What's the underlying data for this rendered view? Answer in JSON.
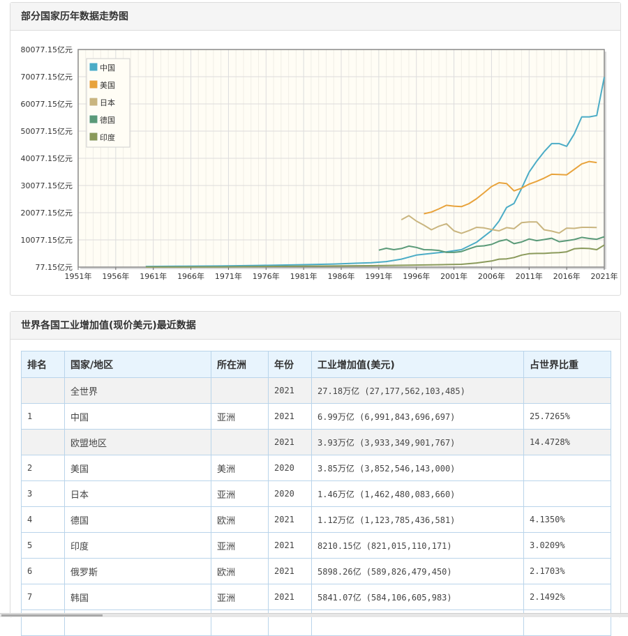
{
  "chart_panel": {
    "title": "部分国家历年数据走势图"
  },
  "table_panel": {
    "title": "世界各国工业增加值(现价美元)最近数据"
  },
  "chart_data": {
    "type": "line",
    "title": "",
    "xlabel": "",
    "ylabel": "",
    "x_ticks": [
      "1951年",
      "1956年",
      "1961年",
      "1966年",
      "1971年",
      "1976年",
      "1981年",
      "1986年",
      "1991年",
      "1996年",
      "2001年",
      "2006年",
      "2011年",
      "2016年",
      "2021年"
    ],
    "y_ticks": [
      "77.15亿元",
      "10077.15亿元",
      "20077.15亿元",
      "30077.15亿元",
      "40077.15亿元",
      "50077.15亿元",
      "60077.15亿元",
      "70077.15亿元",
      "80077.15亿元"
    ],
    "xlim": [
      1951,
      2021
    ],
    "ylim": [
      77.15,
      80077.15
    ],
    "grid": true,
    "legend": "top-left",
    "series": [
      {
        "name": "中国",
        "color": "#4bacc6",
        "x": [
          1960,
          1965,
          1970,
          1975,
          1980,
          1985,
          1990,
          1992,
          1994,
          1996,
          1998,
          2000,
          2002,
          2004,
          2006,
          2007,
          2008,
          2009,
          2010,
          2011,
          2012,
          2013,
          2014,
          2015,
          2016,
          2017,
          2018,
          2019,
          2020,
          2021
        ],
        "y": [
          300,
          400,
          500,
          700,
          900,
          1200,
          1700,
          2100,
          3000,
          4500,
          5100,
          5700,
          6500,
          9200,
          13500,
          17000,
          22000,
          23500,
          29000,
          35000,
          39000,
          42500,
          45500,
          45500,
          44500,
          49000,
          55300,
          55300,
          55800,
          69918
        ]
      },
      {
        "name": "美国",
        "color": "#e8a33c",
        "x": [
          1997,
          1998,
          1999,
          2000,
          2001,
          2002,
          2003,
          2004,
          2005,
          2006,
          2007,
          2008,
          2009,
          2010,
          2011,
          2012,
          2013,
          2014,
          2015,
          2016,
          2017,
          2018,
          2019,
          2020
        ],
        "y": [
          19700,
          20300,
          21500,
          22800,
          22500,
          22300,
          23400,
          25200,
          27400,
          29700,
          31100,
          30800,
          28100,
          29100,
          30600,
          31600,
          32800,
          34200,
          34100,
          34000,
          36000,
          38000,
          38900,
          38525
        ]
      },
      {
        "name": "日本",
        "color": "#c9b57f",
        "x": [
          1994,
          1995,
          1996,
          1997,
          1998,
          1999,
          2000,
          2001,
          2002,
          2003,
          2004,
          2005,
          2006,
          2007,
          2008,
          2009,
          2010,
          2011,
          2012,
          2013,
          2014,
          2015,
          2016,
          2017,
          2018,
          2019,
          2020
        ],
        "y": [
          17500,
          19000,
          17000,
          15500,
          13800,
          15100,
          16000,
          13400,
          12500,
          13500,
          14700,
          14500,
          13900,
          13400,
          14600,
          14200,
          16400,
          16700,
          16700,
          13800,
          13300,
          12600,
          14400,
          14300,
          14700,
          14700,
          14625
        ]
      },
      {
        "name": "德国",
        "color": "#5a9a78",
        "x": [
          1991,
          1992,
          1993,
          1994,
          1995,
          1996,
          1997,
          1998,
          1999,
          2000,
          2001,
          2002,
          2003,
          2004,
          2005,
          2006,
          2007,
          2008,
          2009,
          2010,
          2011,
          2012,
          2013,
          2014,
          2015,
          2016,
          2017,
          2018,
          2019,
          2020,
          2021
        ],
        "y": [
          6300,
          7000,
          6500,
          6900,
          7800,
          7300,
          6500,
          6400,
          6200,
          5500,
          5500,
          5800,
          6800,
          7700,
          7900,
          8400,
          9600,
          10200,
          8700,
          9300,
          10400,
          9800,
          10200,
          10700,
          9400,
          9800,
          10200,
          11000,
          10600,
          10300,
          11238
        ]
      },
      {
        "name": "印度",
        "color": "#8a9a5b",
        "x": [
          1960,
          1970,
          1980,
          1985,
          1990,
          1995,
          2000,
          2002,
          2004,
          2006,
          2007,
          2008,
          2009,
          2010,
          2011,
          2012,
          2013,
          2014,
          2015,
          2016,
          2017,
          2018,
          2019,
          2020,
          2021
        ],
        "y": [
          100,
          150,
          400,
          500,
          600,
          800,
          1000,
          1100,
          1600,
          2300,
          3000,
          3100,
          3600,
          4500,
          5000,
          5100,
          5100,
          5300,
          5400,
          5700,
          6800,
          7000,
          6900,
          6500,
          8210
        ]
      }
    ]
  },
  "table": {
    "headers": [
      "排名",
      "国家/地区",
      "所在洲",
      "年份",
      "工业增加值(美元)",
      "占世界比重"
    ],
    "rows": [
      {
        "rank": "",
        "country": "全世界",
        "continent": "",
        "year": "2021",
        "value": "27.18万亿 (27,177,562,103,485)",
        "share": "",
        "shade": true
      },
      {
        "rank": "1",
        "country": "中国",
        "continent": "亚洲",
        "year": "2021",
        "value": "6.99万亿 (6,991,843,696,697)",
        "share": "25.7265%",
        "shade": false
      },
      {
        "rank": "",
        "country": "欧盟地区",
        "continent": "",
        "year": "2021",
        "value": "3.93万亿 (3,933,349,901,767)",
        "share": "14.4728%",
        "shade": true
      },
      {
        "rank": "2",
        "country": "美国",
        "continent": "美洲",
        "year": "2020",
        "value": "3.85万亿 (3,852,546,143,000)",
        "share": "",
        "shade": false
      },
      {
        "rank": "3",
        "country": "日本",
        "continent": "亚洲",
        "year": "2020",
        "value": "1.46万亿 (1,462,480,083,660)",
        "share": "",
        "shade": false
      },
      {
        "rank": "4",
        "country": "德国",
        "continent": "欧洲",
        "year": "2021",
        "value": "1.12万亿 (1,123,785,436,581)",
        "share": "4.1350%",
        "shade": false
      },
      {
        "rank": "5",
        "country": "印度",
        "continent": "亚洲",
        "year": "2021",
        "value": "8210.15亿 (821,015,110,171)",
        "share": "3.0209%",
        "shade": false
      },
      {
        "rank": "6",
        "country": "俄罗斯",
        "continent": "欧洲",
        "year": "2021",
        "value": "5898.26亿 (589,826,479,450)",
        "share": "2.1703%",
        "shade": false
      },
      {
        "rank": "7",
        "country": "韩国",
        "continent": "亚洲",
        "year": "2021",
        "value": "5841.07亿 (584,106,605,983)",
        "share": "2.1492%",
        "shade": false
      },
      {
        "rank": "",
        "country": "",
        "continent": "",
        "year": "",
        "value": "",
        "share": "",
        "shade": false
      }
    ]
  }
}
